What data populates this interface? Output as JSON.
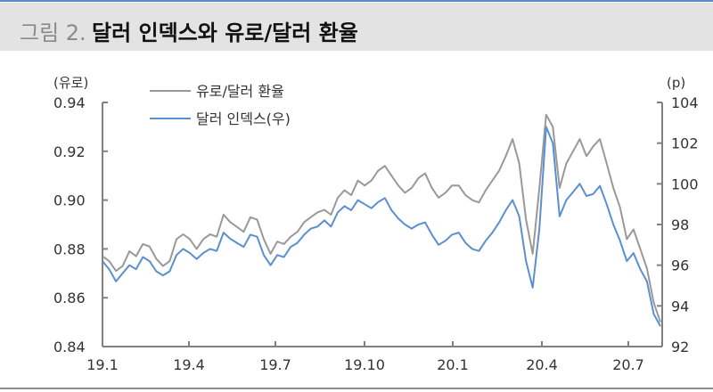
{
  "header": {
    "prefix": "그림 2.",
    "title": "달러 인덱스와 유로/달러 환율"
  },
  "colors": {
    "header_bg": "#e3e3e3",
    "top_rule": "#5b8ac8",
    "eurusd": "#999999",
    "dxy": "#5b8fd0",
    "axis": "#808080"
  },
  "chart_data": {
    "type": "line",
    "title": "달러 인덱스와 유로/달러 환율",
    "left_axis": {
      "unit_label": "(유로)",
      "ylim": [
        0.84,
        0.94
      ],
      "ticks": [
        "0.94",
        "0.92",
        "0.90",
        "0.88",
        "0.86",
        "0.84"
      ]
    },
    "right_axis": {
      "unit_label": "(p)",
      "ylim": [
        92,
        104
      ],
      "ticks": [
        "104",
        "102",
        "100",
        "98",
        "96",
        "94",
        "92"
      ]
    },
    "x_ticks": [
      "19.1",
      "19.4",
      "19.7",
      "19.10",
      "20.1",
      "20.4",
      "20.7"
    ],
    "legend": [
      "유로/달러 환율",
      "달러 인덱스(우)"
    ],
    "legend_position": "top-left inside",
    "grid": false,
    "series": [
      {
        "name": "유로/달러 환율",
        "axis": "left",
        "x": [
          0,
          1,
          2,
          3,
          4,
          5,
          6,
          7,
          8,
          9,
          10,
          11,
          12,
          13,
          14,
          15,
          16,
          17,
          18,
          19,
          20,
          21,
          22,
          23,
          24,
          25,
          26,
          27,
          28,
          29,
          30,
          31,
          32,
          33,
          34,
          35,
          36,
          37,
          38,
          39,
          40,
          41,
          42,
          43,
          44,
          45,
          46,
          47,
          48,
          49,
          50,
          51,
          52,
          53,
          54,
          55,
          56,
          57,
          58,
          59,
          60,
          61,
          62,
          63,
          64,
          65,
          66,
          67,
          68,
          69,
          70,
          71,
          72,
          73,
          74,
          75,
          76,
          77,
          78,
          79,
          80,
          81,
          82,
          83
        ],
        "values": [
          0.877,
          0.875,
          0.871,
          0.873,
          0.879,
          0.877,
          0.882,
          0.881,
          0.876,
          0.873,
          0.875,
          0.884,
          0.886,
          0.884,
          0.88,
          0.884,
          0.886,
          0.885,
          0.894,
          0.891,
          0.889,
          0.887,
          0.893,
          0.892,
          0.884,
          0.878,
          0.883,
          0.882,
          0.885,
          0.887,
          0.891,
          0.893,
          0.895,
          0.896,
          0.894,
          0.901,
          0.904,
          0.902,
          0.908,
          0.906,
          0.908,
          0.912,
          0.914,
          0.91,
          0.906,
          0.903,
          0.905,
          0.909,
          0.911,
          0.905,
          0.901,
          0.903,
          0.906,
          0.906,
          0.902,
          0.9,
          0.899,
          0.904,
          0.908,
          0.912,
          0.918,
          0.925,
          0.915,
          0.892,
          0.878,
          0.905,
          0.935,
          0.93,
          0.905,
          0.915,
          0.92,
          0.925,
          0.918,
          0.922,
          0.925,
          0.915,
          0.905,
          0.897,
          0.884,
          0.888,
          0.88,
          0.872,
          0.858,
          0.85
        ]
      },
      {
        "name": "달러 인덱스(우)",
        "axis": "right",
        "x": [
          0,
          1,
          2,
          3,
          4,
          5,
          6,
          7,
          8,
          9,
          10,
          11,
          12,
          13,
          14,
          15,
          16,
          17,
          18,
          19,
          20,
          21,
          22,
          23,
          24,
          25,
          26,
          27,
          28,
          29,
          30,
          31,
          32,
          33,
          34,
          35,
          36,
          37,
          38,
          39,
          40,
          41,
          42,
          43,
          44,
          45,
          46,
          47,
          48,
          49,
          50,
          51,
          52,
          53,
          54,
          55,
          56,
          57,
          58,
          59,
          60,
          61,
          62,
          63,
          64,
          65,
          66,
          67,
          68,
          69,
          70,
          71,
          72,
          73,
          74,
          75,
          76,
          77,
          78,
          79,
          80,
          81,
          82,
          83
        ],
        "values": [
          96.2,
          95.8,
          95.2,
          95.6,
          96.0,
          95.8,
          96.4,
          96.2,
          95.7,
          95.5,
          95.7,
          96.5,
          96.8,
          96.6,
          96.3,
          96.6,
          96.8,
          96.7,
          97.6,
          97.3,
          97.1,
          96.9,
          97.5,
          97.4,
          96.5,
          96.0,
          96.5,
          96.4,
          96.9,
          97.1,
          97.5,
          97.8,
          97.9,
          98.2,
          97.9,
          98.6,
          98.9,
          98.7,
          99.2,
          99.0,
          98.8,
          99.1,
          99.3,
          98.7,
          98.3,
          98.0,
          97.8,
          98.0,
          98.1,
          97.5,
          97.0,
          97.2,
          97.5,
          97.6,
          97.1,
          96.8,
          96.7,
          97.2,
          97.6,
          98.1,
          98.7,
          99.2,
          98.4,
          96.2,
          94.9,
          97.8,
          102.8,
          102.0,
          98.4,
          99.2,
          99.6,
          100.0,
          99.4,
          99.5,
          99.9,
          99.0,
          98.0,
          97.2,
          96.2,
          96.6,
          95.8,
          95.2,
          93.6,
          93.0
        ]
      }
    ]
  }
}
